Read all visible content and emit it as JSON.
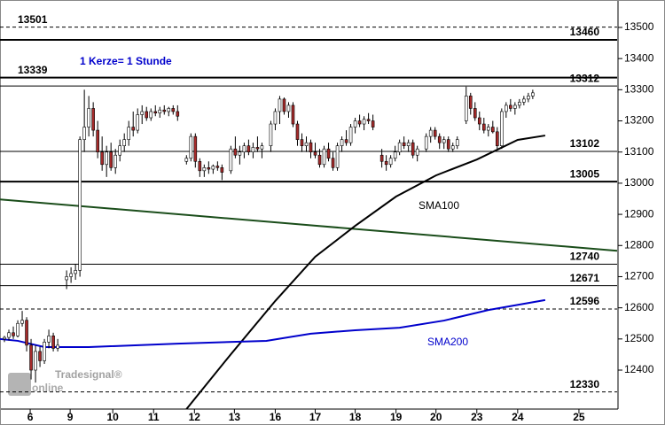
{
  "chart_data": {
    "type": "candlestick",
    "annotation": "1 Kerze= 1 Stunde",
    "watermark": {
      "brand": "Tradesignal®",
      "text": "online"
    },
    "xlim": [
      0,
      139
    ],
    "xticks": [
      {
        "value": 6.8,
        "label": "6"
      },
      {
        "value": 15.8,
        "label": "9"
      },
      {
        "value": 25.4,
        "label": "10"
      },
      {
        "value": 34.6,
        "label": "11"
      },
      {
        "value": 43.8,
        "label": "12"
      },
      {
        "value": 52.8,
        "label": "13"
      },
      {
        "value": 62,
        "label": "16"
      },
      {
        "value": 71,
        "label": "17"
      },
      {
        "value": 80,
        "label": "18"
      },
      {
        "value": 89.2,
        "label": "19"
      },
      {
        "value": 98.2,
        "label": "20"
      },
      {
        "value": 107.4,
        "label": "23"
      },
      {
        "value": 116.6,
        "label": "24"
      },
      {
        "value": 130.4,
        "label": "25"
      }
    ],
    "ylim": [
      12275,
      13588
    ],
    "yticks": [
      12400,
      12500,
      12600,
      12700,
      12800,
      12900,
      13000,
      13100,
      13200,
      13300,
      13400,
      13500
    ],
    "up_color": "#ffffff",
    "down_color": "#a52a2a",
    "candles": {
      "x": [
        1,
        2,
        3,
        4,
        5,
        6,
        7,
        8,
        9,
        10,
        11,
        12,
        13,
        15,
        16,
        17,
        18,
        19,
        20,
        21,
        22,
        23,
        24,
        25,
        26,
        27,
        28,
        29,
        30,
        31,
        32,
        33,
        34,
        35,
        36,
        37,
        38,
        39,
        40,
        42,
        43,
        44,
        45,
        46,
        47,
        48,
        49,
        50,
        52,
        53,
        54,
        55,
        56,
        57,
        58,
        59,
        61,
        62,
        63,
        64,
        65,
        66,
        67,
        68,
        69,
        70,
        71,
        72,
        73,
        74,
        75,
        76,
        77,
        78,
        79,
        80,
        81,
        82,
        83,
        84,
        86,
        87,
        88,
        89,
        90,
        91,
        92,
        93,
        94,
        96,
        97,
        98,
        99,
        100,
        101,
        102,
        103,
        105,
        106,
        107,
        108,
        109,
        110,
        111,
        112,
        113,
        114,
        115,
        116,
        117,
        118,
        119,
        120
      ],
      "open": [
        12500,
        12505,
        12520,
        12510,
        12550,
        12560,
        12480,
        12400,
        12460,
        12430,
        12490,
        12510,
        12470,
        12690,
        12700,
        12710,
        12720,
        13140,
        13180,
        13240,
        13170,
        13100,
        13060,
        13100,
        13050,
        13090,
        13120,
        13140,
        13180,
        13170,
        13220,
        13230,
        13210,
        13230,
        13225,
        13235,
        13230,
        13240,
        13230,
        13070,
        13080,
        13150,
        13070,
        13040,
        13050,
        13045,
        13055,
        13050,
        13040,
        13110,
        13090,
        13100,
        13120,
        13100,
        13115,
        13110,
        13120,
        13190,
        13230,
        13270,
        13230,
        13250,
        13190,
        13140,
        13120,
        13130,
        13100,
        13090,
        13060,
        13110,
        13080,
        13050,
        13120,
        13140,
        13130,
        13180,
        13200,
        13190,
        13205,
        13200,
        13090,
        13070,
        13060,
        13080,
        13100,
        13130,
        13120,
        13130,
        13090,
        13110,
        13150,
        13170,
        13150,
        13130,
        13140,
        13110,
        13120,
        13200,
        13280,
        13240,
        13210,
        13190,
        13170,
        13180,
        13165,
        13120,
        13230,
        13250,
        13240,
        13250,
        13260,
        13270,
        13280
      ],
      "high": [
        12510,
        12530,
        12540,
        12560,
        12590,
        12570,
        12500,
        12480,
        12475,
        12500,
        12530,
        12520,
        12500,
        12720,
        12730,
        12740,
        13150,
        13300,
        13280,
        13260,
        13200,
        13150,
        13120,
        13130,
        13110,
        13140,
        13160,
        13200,
        13230,
        13240,
        13250,
        13245,
        13240,
        13250,
        13245,
        13250,
        13245,
        13250,
        13250,
        13090,
        13160,
        13160,
        13080,
        13060,
        13070,
        13060,
        13070,
        13060,
        13120,
        13150,
        13120,
        13130,
        13140,
        13130,
        13150,
        13130,
        13200,
        13240,
        13280,
        13275,
        13260,
        13260,
        13200,
        13160,
        13150,
        13140,
        13130,
        13110,
        13120,
        13130,
        13100,
        13130,
        13150,
        13170,
        13190,
        13210,
        13220,
        13215,
        13225,
        13220,
        13110,
        13090,
        13090,
        13120,
        13140,
        13150,
        13140,
        13140,
        13120,
        13160,
        13180,
        13180,
        13160,
        13150,
        13150,
        13130,
        13150,
        13310,
        13290,
        13260,
        13230,
        13210,
        13190,
        13200,
        13180,
        13240,
        13260,
        13270,
        13260,
        13270,
        13280,
        13290,
        13300
      ],
      "low": [
        12490,
        12495,
        12500,
        12505,
        12540,
        12460,
        12370,
        12360,
        12410,
        12420,
        12470,
        12460,
        12460,
        12660,
        12680,
        12690,
        12700,
        13100,
        13150,
        13150,
        13080,
        13040,
        13020,
        13040,
        13030,
        13070,
        13100,
        13120,
        13150,
        13160,
        13190,
        13200,
        13200,
        13215,
        13210,
        13220,
        13215,
        13220,
        13200,
        13060,
        13070,
        13050,
        13020,
        13020,
        13030,
        13030,
        13040,
        13010,
        13030,
        13080,
        13060,
        13080,
        13090,
        13080,
        13100,
        13080,
        13100,
        13170,
        13190,
        13220,
        13210,
        13180,
        13120,
        13100,
        13100,
        13080,
        13080,
        13050,
        13050,
        13070,
        13040,
        13040,
        13100,
        13120,
        13120,
        13160,
        13180,
        13170,
        13190,
        13170,
        13050,
        13040,
        13050,
        13070,
        13090,
        13110,
        13100,
        13080,
        13070,
        13100,
        13130,
        13140,
        13110,
        13110,
        13100,
        13100,
        13110,
        13190,
        13220,
        13200,
        13170,
        13160,
        13150,
        13160,
        13110,
        13110,
        13210,
        13230,
        13220,
        13240,
        13250,
        13260,
        13270
      ],
      "close": [
        12505,
        12520,
        12510,
        12550,
        12560,
        12480,
        12400,
        12460,
        12430,
        12490,
        12510,
        12470,
        12480,
        12700,
        12710,
        12720,
        13140,
        13180,
        13240,
        13170,
        13100,
        13060,
        13100,
        13050,
        13090,
        13120,
        13140,
        13180,
        13170,
        13220,
        13230,
        13210,
        13230,
        13225,
        13235,
        13230,
        13240,
        13230,
        13215,
        13080,
        13150,
        13070,
        13040,
        13050,
        13045,
        13055,
        13050,
        13035,
        13110,
        13090,
        13100,
        13120,
        13100,
        13115,
        13110,
        13120,
        13190,
        13230,
        13270,
        13230,
        13250,
        13190,
        13140,
        13120,
        13130,
        13100,
        13090,
        13060,
        13110,
        13080,
        13050,
        13120,
        13140,
        13130,
        13180,
        13200,
        13190,
        13205,
        13200,
        13180,
        13070,
        13060,
        13080,
        13100,
        13130,
        13120,
        13130,
        13090,
        13110,
        13150,
        13170,
        13150,
        13130,
        13140,
        13110,
        13120,
        13140,
        13280,
        13240,
        13210,
        13190,
        13170,
        13180,
        13165,
        13120,
        13230,
        13250,
        13240,
        13250,
        13260,
        13270,
        13280,
        13290
      ]
    },
    "levels": [
      {
        "value": 13501,
        "side": "left",
        "style": "dashed"
      },
      {
        "value": 13460,
        "side": "right",
        "style": "thick"
      },
      {
        "value": 13339,
        "side": "left",
        "style": "thick"
      },
      {
        "value": 13312,
        "side": "right",
        "style": "solid"
      },
      {
        "value": 13102,
        "side": "right",
        "style": "solid"
      },
      {
        "value": 13005,
        "side": "right",
        "style": "thick"
      },
      {
        "value": 12740,
        "side": "right",
        "style": "solid"
      },
      {
        "value": 12671,
        "side": "right",
        "style": "solid"
      },
      {
        "value": 12596,
        "side": "right",
        "style": "dashed"
      },
      {
        "value": 12330,
        "side": "right",
        "style": "dashed"
      }
    ],
    "series": [
      {
        "color": "#1a4d1a",
        "x": [
          0,
          139
        ],
        "values": [
          12948,
          12783
        ]
      },
      {
        "name": "SMA100",
        "color": "#000000",
        "x": [
          42,
          52,
          62,
          71,
          80,
          89.2,
          98.2,
          107.4,
          116.6,
          122.8
        ],
        "values": [
          12275,
          12451,
          12622,
          12764,
          12863,
          12957,
          13025,
          13076,
          13139,
          13153
        ]
      },
      {
        "name": "SMA200",
        "color": "#0000cc",
        "x": [
          0,
          4,
          10,
          20,
          40,
          60,
          70,
          80,
          90,
          100,
          110,
          122.8
        ],
        "values": [
          12500,
          12494,
          12474,
          12474,
          12485,
          12494,
          12517,
          12528,
          12536,
          12559,
          12593,
          12625
        ]
      }
    ]
  }
}
